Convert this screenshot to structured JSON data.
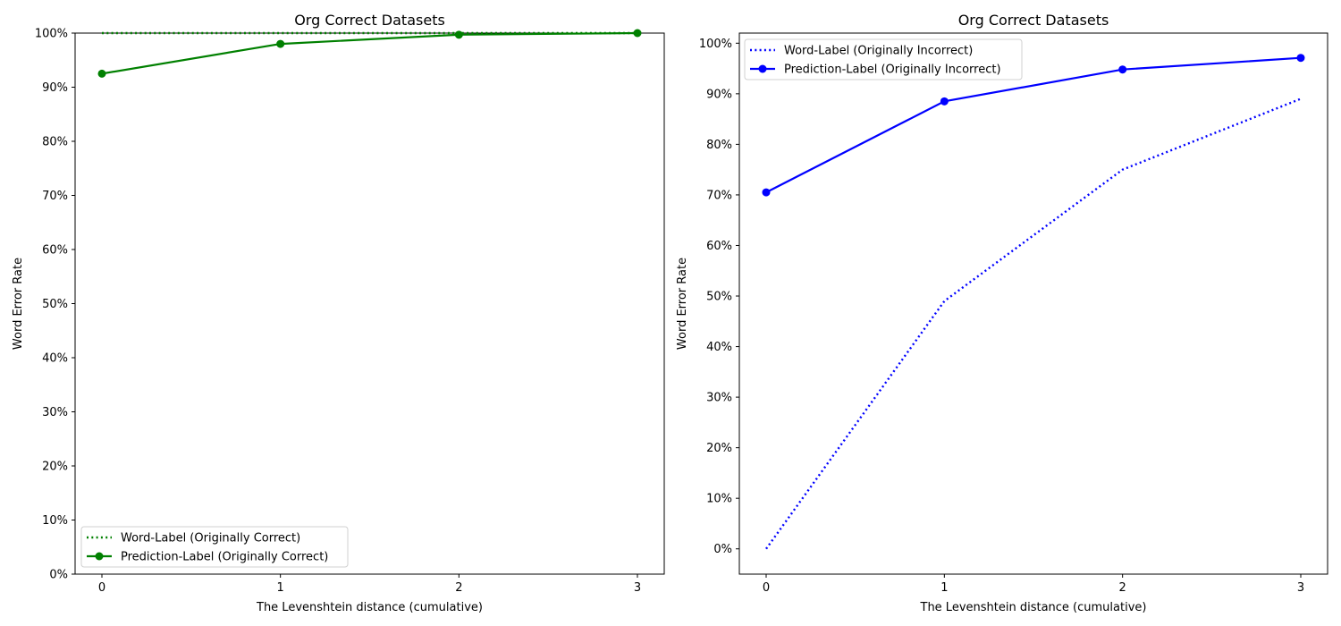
{
  "chart_data": [
    {
      "type": "line",
      "title": "Org Correct Datasets",
      "xlabel": "The Levenshtein distance (cumulative)",
      "ylabel": "Word Error Rate",
      "x": [
        0,
        1,
        2,
        3
      ],
      "xticks": [
        "0",
        "1",
        "2",
        "3"
      ],
      "ylim": [
        0,
        100
      ],
      "yticks": [
        "0%",
        "10%",
        "20%",
        "30%",
        "40%",
        "50%",
        "60%",
        "70%",
        "80%",
        "90%",
        "100%"
      ],
      "grid": false,
      "legend_position": "lower-left",
      "series": [
        {
          "name": "Word-Label (Originally Correct)",
          "values": [
            100,
            100,
            100,
            100
          ],
          "color": "#008000",
          "style": "dotted",
          "markers": false
        },
        {
          "name": "Prediction-Label (Originally Correct)",
          "values": [
            92.5,
            98.0,
            99.7,
            100
          ],
          "color": "#008000",
          "style": "solid",
          "markers": true
        }
      ]
    },
    {
      "type": "line",
      "title": "Org Correct Datasets",
      "xlabel": "The Levenshtein distance (cumulative)",
      "ylabel": "Word Error Rate",
      "x": [
        0,
        1,
        2,
        3
      ],
      "xticks": [
        "0",
        "1",
        "2",
        "3"
      ],
      "ylim": [
        -5,
        102
      ],
      "yticks": [
        "0%",
        "10%",
        "20%",
        "30%",
        "40%",
        "50%",
        "60%",
        "70%",
        "80%",
        "90%",
        "100%"
      ],
      "grid": false,
      "legend_position": "upper-left",
      "series": [
        {
          "name": "Word-Label (Originally Incorrect)",
          "values": [
            0,
            49,
            75,
            89
          ],
          "color": "#0000ff",
          "style": "dotted",
          "markers": false
        },
        {
          "name": "Prediction-Label (Originally Incorrect)",
          "values": [
            70.5,
            88.5,
            94.8,
            97.1
          ],
          "color": "#0000ff",
          "style": "solid",
          "markers": true
        }
      ]
    }
  ]
}
